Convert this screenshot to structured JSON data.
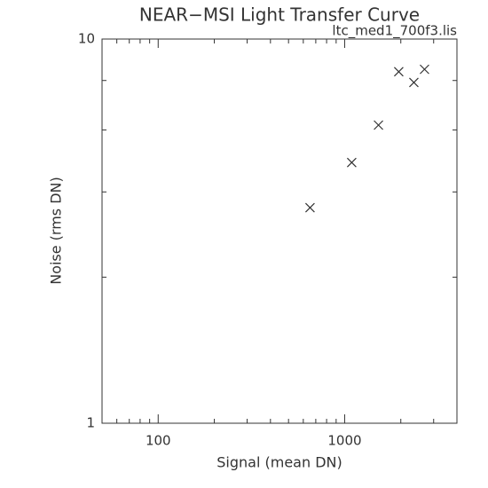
{
  "chart_data": {
    "type": "scatter",
    "title": "NEAR−MSI Light Transfer Curve",
    "subtitle": "ltc_med1_700f3.lis",
    "x_label": "Signal (mean DN)",
    "y_label": "Noise (rms DN)",
    "series": [
      {
        "name": "ltc_med1_700f3.lis",
        "color": "#333333",
        "marker": "x",
        "x": [
          652,
          1091,
          1518,
          1950,
          2350,
          2680
        ],
        "values": [
          3.64,
          4.77,
          5.97,
          8.22,
          7.71,
          8.34
        ]
      }
    ],
    "xlim": [
      50,
      4000
    ],
    "ylim": [
      1,
      10
    ],
    "xscale": "log",
    "yscale": "log",
    "xticks": [
      100,
      1000
    ],
    "yticks": [
      1,
      10
    ],
    "xminorticks": [
      60,
      70,
      80,
      90,
      200,
      300,
      400,
      500,
      600,
      700,
      800,
      900,
      2000,
      3000,
      4000
    ],
    "yminorticks": [
      2.4,
      4,
      5.8,
      7.8
    ]
  }
}
